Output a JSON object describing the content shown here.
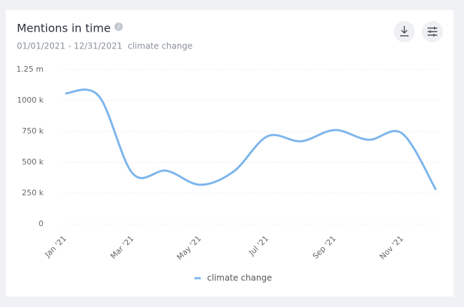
{
  "chart_data": {
    "type": "line",
    "title": "Mentions in time",
    "subtitle": "01/01/2021 - 12/31/2021",
    "query": "climate change",
    "categories": [
      "Jan '21",
      null,
      "Mar '21",
      null,
      "May '21",
      null,
      "Jul '21",
      null,
      "Sep '21",
      null,
      "Nov '21",
      null
    ],
    "series": [
      {
        "name": "climate change",
        "color": "#7cb5ec",
        "values": [
          1057000,
          1034000,
          409000,
          432000,
          318000,
          426000,
          710000,
          670000,
          761000,
          682000,
          733000,
          278000
        ]
      }
    ],
    "ylim": [
      0,
      1250000
    ],
    "yticks": [
      0,
      {
        "value": 250000,
        "label": "250 k"
      },
      {
        "value": 500000,
        "label": "500 k"
      },
      {
        "value": 750000,
        "label": "750 k"
      },
      {
        "value": 1000000,
        "label": "1000 k"
      },
      {
        "value": 1250000,
        "label": "1.25 m"
      }
    ],
    "grid": true,
    "legend": "bottom"
  }
}
